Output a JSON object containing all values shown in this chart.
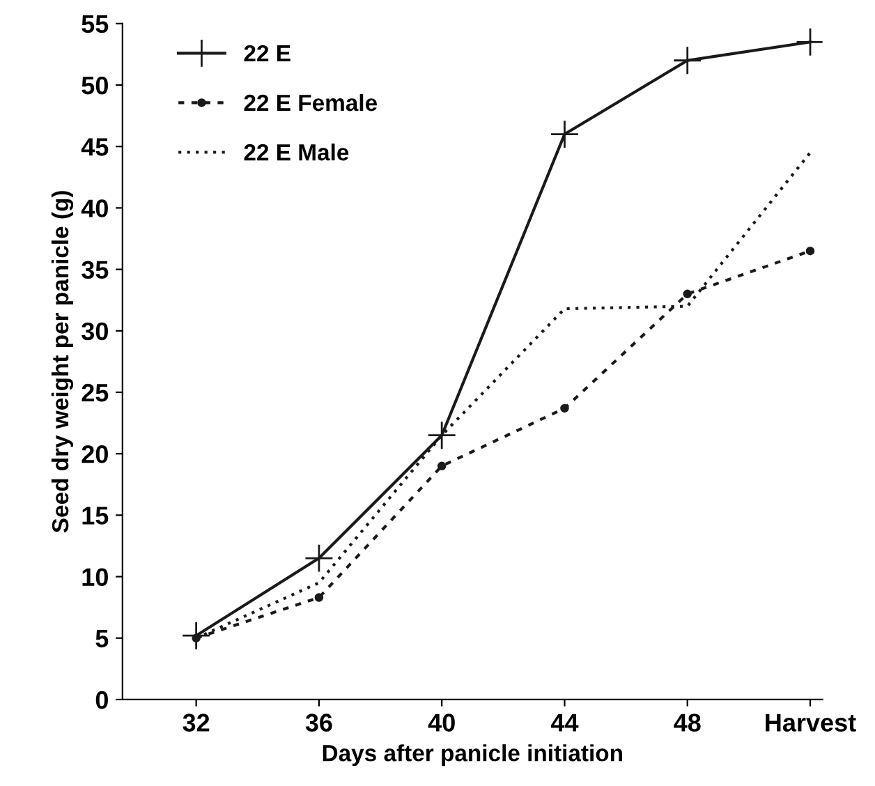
{
  "chart_data": {
    "type": "line",
    "xlabel": "Days after panicle initiation",
    "ylabel": "Seed dry weight per panicle (g)",
    "categories": [
      "32",
      "36",
      "40",
      "44",
      "48",
      "Harvest"
    ],
    "ylim": [
      0,
      55
    ],
    "yticks": [
      0,
      5,
      10,
      15,
      20,
      25,
      30,
      35,
      40,
      45,
      50,
      55
    ],
    "grid": false,
    "legend": "top left",
    "series": [
      {
        "name": "22 E",
        "color": "#1a1a1a",
        "marker": "cross",
        "line_style": "solid",
        "values": [
          5.2,
          11.5,
          21.5,
          46,
          52,
          53.5
        ]
      },
      {
        "name": "22 E Female",
        "color": "#1a1a1a",
        "marker": "circle",
        "line_style": "dashed",
        "values": [
          5,
          8.3,
          19,
          23.7,
          33,
          36.5
        ]
      },
      {
        "name": "22 E Male",
        "color": "#1a1a1a",
        "marker": "none",
        "line_style": "dotted",
        "values": [
          5,
          9.5,
          21.5,
          31.8,
          32,
          44.5
        ]
      }
    ]
  }
}
